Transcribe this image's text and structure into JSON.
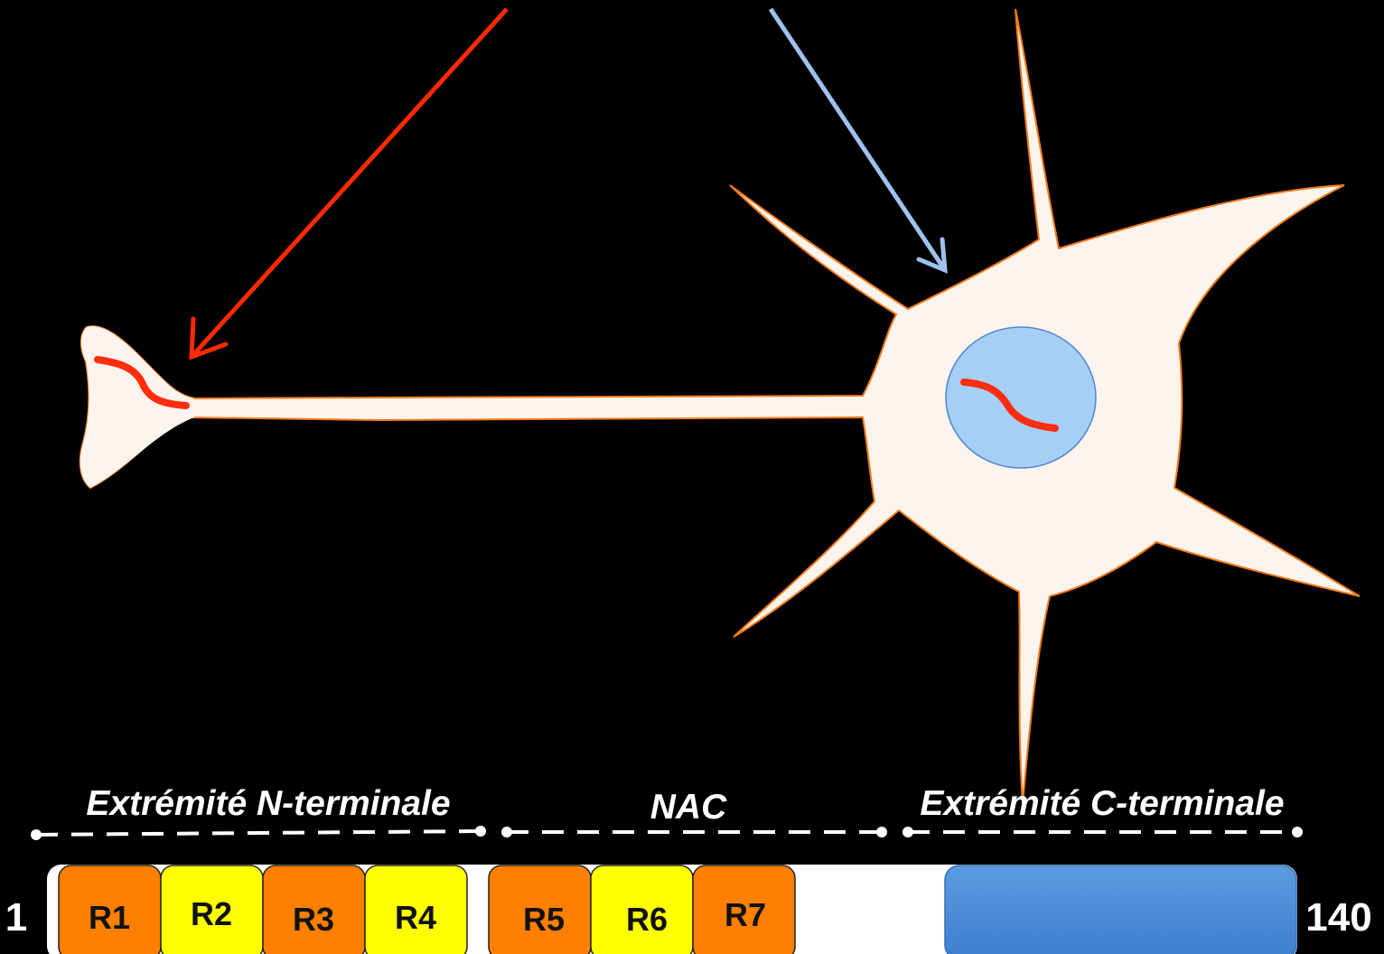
{
  "diagram": {
    "colors": {
      "background": "#000000",
      "neuron_fill": "#fdf4ee",
      "neuron_outline": "#f07b1a",
      "nucleus_fill": "#a6cff5",
      "nucleus_outline": "#4f86d6",
      "protein_mark": "#ff2d10",
      "arrow_terminal": "#ff2a00",
      "arrow_nucleus": "#9ec2ec",
      "dashed_divider": "#ffffff",
      "repeat_orange": "#ff7f00",
      "repeat_yellow": "#ffff00",
      "c_terminal_domain": "#4a8fd8"
    },
    "arrows": [
      {
        "target": "axon-terminal",
        "color_key": "arrow_terminal"
      },
      {
        "target": "nucleus",
        "color_key": "arrow_nucleus"
      }
    ],
    "neuron": {
      "parts": [
        "axon-terminal",
        "axon",
        "soma",
        "dendrites",
        "nucleus"
      ]
    },
    "protein_map": {
      "start_residue": "1",
      "end_residue": "140",
      "regions": [
        {
          "id": "n-terminal",
          "label": "Extrémité  N-terminale"
        },
        {
          "id": "nac",
          "label": "NAC"
        },
        {
          "id": "c-terminal",
          "label": "Extrémité  C-terminale"
        }
      ],
      "repeats": [
        {
          "label": "R1",
          "color": "orange"
        },
        {
          "label": "R2",
          "color": "yellow"
        },
        {
          "label": "R3",
          "color": "orange"
        },
        {
          "label": "R4",
          "color": "yellow"
        },
        {
          "label": "R5",
          "color": "orange"
        },
        {
          "label": "R6",
          "color": "yellow"
        },
        {
          "label": "R7",
          "color": "orange"
        }
      ],
      "c_terminal_domain": {
        "color": "blue"
      }
    }
  }
}
